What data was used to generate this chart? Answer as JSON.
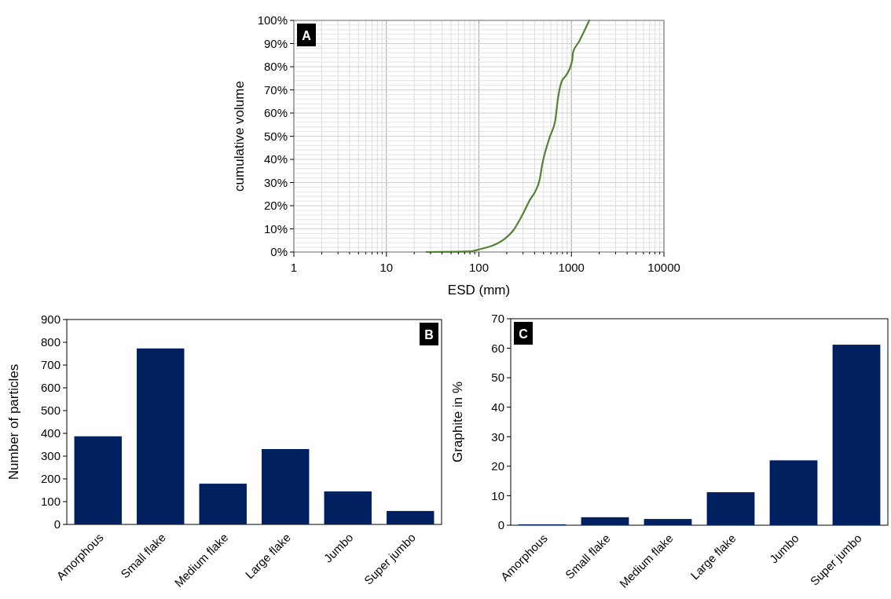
{
  "chart_data": [
    {
      "type": "line",
      "xlabel": "ESD (mm)",
      "ylabel": "cumulative volume",
      "annotations": [
        "A"
      ],
      "log": "x",
      "grid": true,
      "xlim": [
        1,
        10000
      ],
      "xticks": [
        1,
        10,
        100,
        1000,
        10000
      ],
      "ylim": [
        0,
        100
      ],
      "yticks": [
        {
          "value": 0,
          "label": "0%"
        },
        {
          "value": 10,
          "label": "10%"
        },
        {
          "value": 20,
          "label": "20%"
        },
        {
          "value": 30,
          "label": "30%"
        },
        {
          "value": 40,
          "label": "40%"
        },
        {
          "value": 50,
          "label": "50%"
        },
        {
          "value": 60,
          "label": "60%"
        },
        {
          "value": 70,
          "label": "70%"
        },
        {
          "value": 80,
          "label": "80%"
        },
        {
          "value": 90,
          "label": "90%"
        },
        {
          "value": 100,
          "label": "100%"
        }
      ],
      "series": [
        {
          "color": "#548235",
          "x": [
            27,
            83,
            100,
            149,
            194,
            236,
            286,
            348,
            452,
            483,
            587,
            669,
            713,
            787,
            867,
            1021,
            1041,
            1202,
            1560
          ],
          "values": [
            0,
            0.3,
            1.1,
            3.2,
            6,
            9.4,
            15,
            21.8,
            31,
            37.6,
            50,
            56.8,
            65.9,
            73.8,
            76,
            82.8,
            86.2,
            90.7,
            100
          ]
        }
      ]
    },
    {
      "type": "bar",
      "ylabel": "Number of particles",
      "annotations": [
        "B"
      ],
      "color": "#002060",
      "categories": [
        "Amorphous",
        "Small flake",
        "Medium flake",
        "Large flake",
        "Jumbo",
        "Super jumbo"
      ],
      "values": [
        387,
        773,
        179,
        331,
        145,
        59
      ],
      "ylim": [
        0,
        900
      ],
      "yticks": [
        0,
        100,
        200,
        300,
        400,
        500,
        600,
        700,
        800,
        900
      ]
    },
    {
      "type": "bar",
      "ylabel": "Graphite in %",
      "annotations": [
        "C"
      ],
      "color": "#002060",
      "categories": [
        "Amorphous",
        "Small flake",
        "Medium flake",
        "Large flake",
        "Jumbo",
        "Super jumbo"
      ],
      "values": [
        0.3,
        2.7,
        2.1,
        11.2,
        22,
        61.2
      ],
      "ylim": [
        0,
        70
      ],
      "yticks": [
        0,
        10,
        20,
        30,
        40,
        50,
        60,
        70
      ]
    }
  ]
}
